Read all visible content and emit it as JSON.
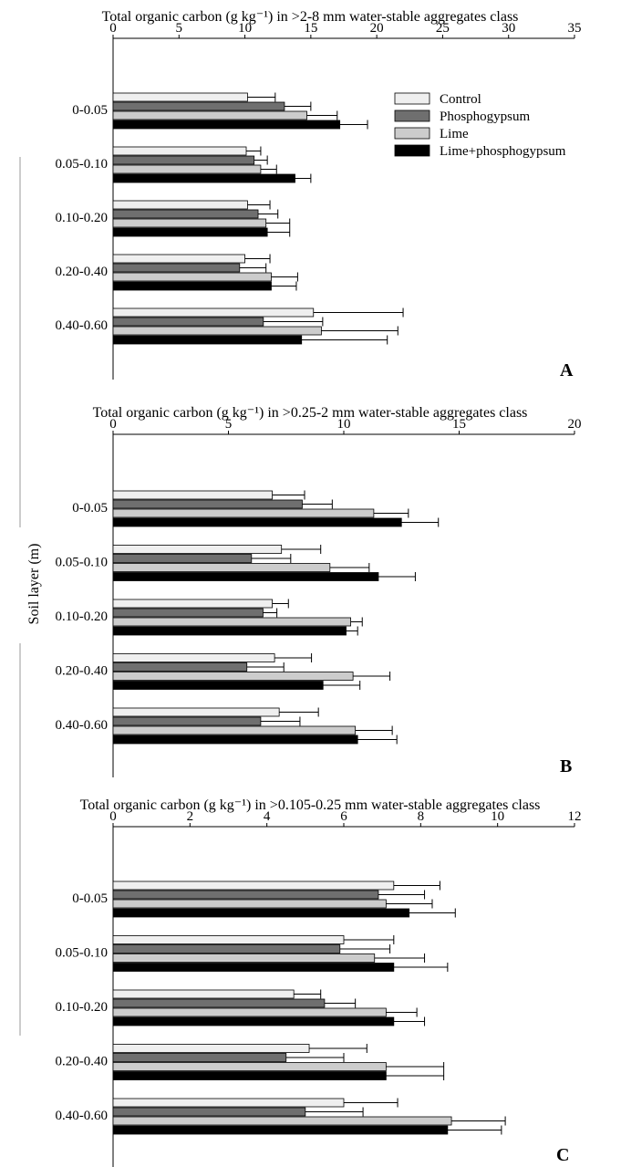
{
  "figure": {
    "ylabel": "Soil layer (m)",
    "legend": [
      {
        "label": "Control",
        "color": "#efefef"
      },
      {
        "label": "Phosphogypsum",
        "color": "#6f6f6f"
      },
      {
        "label": "Lime",
        "color": "#cccccc"
      },
      {
        "label": "Lime+phosphogypsum",
        "color": "#000000"
      }
    ]
  },
  "chart_data": [
    {
      "type": "bar",
      "orientation": "horizontal",
      "panel_letter": "A",
      "title": "Total organic carbon (g kg⁻¹) in >2-8 mm water-stable aggregates class",
      "xlim": [
        0,
        35
      ],
      "xticks": [
        0,
        5,
        10,
        15,
        20,
        25,
        30,
        35
      ],
      "categories": [
        "0-0.05",
        "0.05-0.10",
        "0.10-0.20",
        "0.20-0.40",
        "0.40-0.60"
      ],
      "ylabel": "Soil layer (m)",
      "series": [
        {
          "name": "Control",
          "values": [
            10.2,
            10.1,
            10.2,
            10.0,
            15.2
          ],
          "errors": [
            2.1,
            1.1,
            1.7,
            1.9,
            6.8
          ]
        },
        {
          "name": "Phosphogypsum",
          "values": [
            13.0,
            10.7,
            11.0,
            9.6,
            11.4
          ],
          "errors": [
            2.0,
            1.0,
            1.5,
            2.0,
            4.5
          ]
        },
        {
          "name": "Lime",
          "values": [
            14.7,
            11.2,
            11.6,
            12.0,
            15.8
          ],
          "errors": [
            2.3,
            1.2,
            1.8,
            2.0,
            5.8
          ]
        },
        {
          "name": "Lime+phosphogypsum",
          "values": [
            17.2,
            13.8,
            11.7,
            12.0,
            14.3
          ],
          "errors": [
            2.1,
            1.2,
            1.7,
            1.9,
            6.5
          ]
        }
      ]
    },
    {
      "type": "bar",
      "orientation": "horizontal",
      "panel_letter": "B",
      "title": "Total organic carbon (g kg⁻¹) in >0.25-2 mm water-stable aggregates class",
      "xlim": [
        0,
        20
      ],
      "xticks": [
        0,
        5,
        10,
        15,
        20
      ],
      "categories": [
        "0-0.05",
        "0.05-0.10",
        "0.10-0.20",
        "0.20-0.40",
        "0.40-0.60"
      ],
      "ylabel": "Soil layer (m)",
      "series": [
        {
          "name": "Control",
          "values": [
            6.9,
            7.3,
            6.9,
            7.0,
            7.2
          ],
          "errors": [
            1.4,
            1.7,
            0.7,
            1.6,
            1.7
          ]
        },
        {
          "name": "Phosphogypsum",
          "values": [
            8.2,
            6.0,
            6.5,
            5.8,
            6.4
          ],
          "errors": [
            1.3,
            1.7,
            0.6,
            1.6,
            1.7
          ]
        },
        {
          "name": "Lime",
          "values": [
            11.3,
            9.4,
            10.3,
            10.4,
            10.5
          ],
          "errors": [
            1.5,
            1.7,
            0.5,
            1.6,
            1.6
          ]
        },
        {
          "name": "Lime+phosphogypsum",
          "values": [
            12.5,
            11.5,
            10.1,
            9.1,
            10.6
          ],
          "errors": [
            1.6,
            1.6,
            0.5,
            1.6,
            1.7
          ]
        }
      ]
    },
    {
      "type": "bar",
      "orientation": "horizontal",
      "panel_letter": "C",
      "title": "Total organic carbon (g kg⁻¹) in >0.105-0.25 mm water-stable aggregates class",
      "xlim": [
        0,
        12
      ],
      "xticks": [
        0,
        2,
        4,
        6,
        8,
        10,
        12
      ],
      "categories": [
        "0-0.05",
        "0.05-0.10",
        "0.10-0.20",
        "0.20-0.40",
        "0.40-0.60"
      ],
      "ylabel": "Soil layer (m)",
      "series": [
        {
          "name": "Control",
          "values": [
            7.3,
            6.0,
            4.7,
            5.1,
            6.0
          ],
          "errors": [
            1.2,
            1.3,
            0.7,
            1.5,
            1.4
          ]
        },
        {
          "name": "Phosphogypsum",
          "values": [
            6.9,
            5.9,
            5.5,
            4.5,
            5.0
          ],
          "errors": [
            1.2,
            1.3,
            0.8,
            1.5,
            1.5
          ]
        },
        {
          "name": "Lime",
          "values": [
            7.1,
            6.8,
            7.1,
            7.1,
            8.8
          ],
          "errors": [
            1.2,
            1.3,
            0.8,
            1.5,
            1.4
          ]
        },
        {
          "name": "Lime+phosphogypsum",
          "values": [
            7.7,
            7.3,
            7.3,
            7.1,
            8.7
          ],
          "errors": [
            1.2,
            1.4,
            0.8,
            1.5,
            1.4
          ]
        }
      ]
    }
  ]
}
